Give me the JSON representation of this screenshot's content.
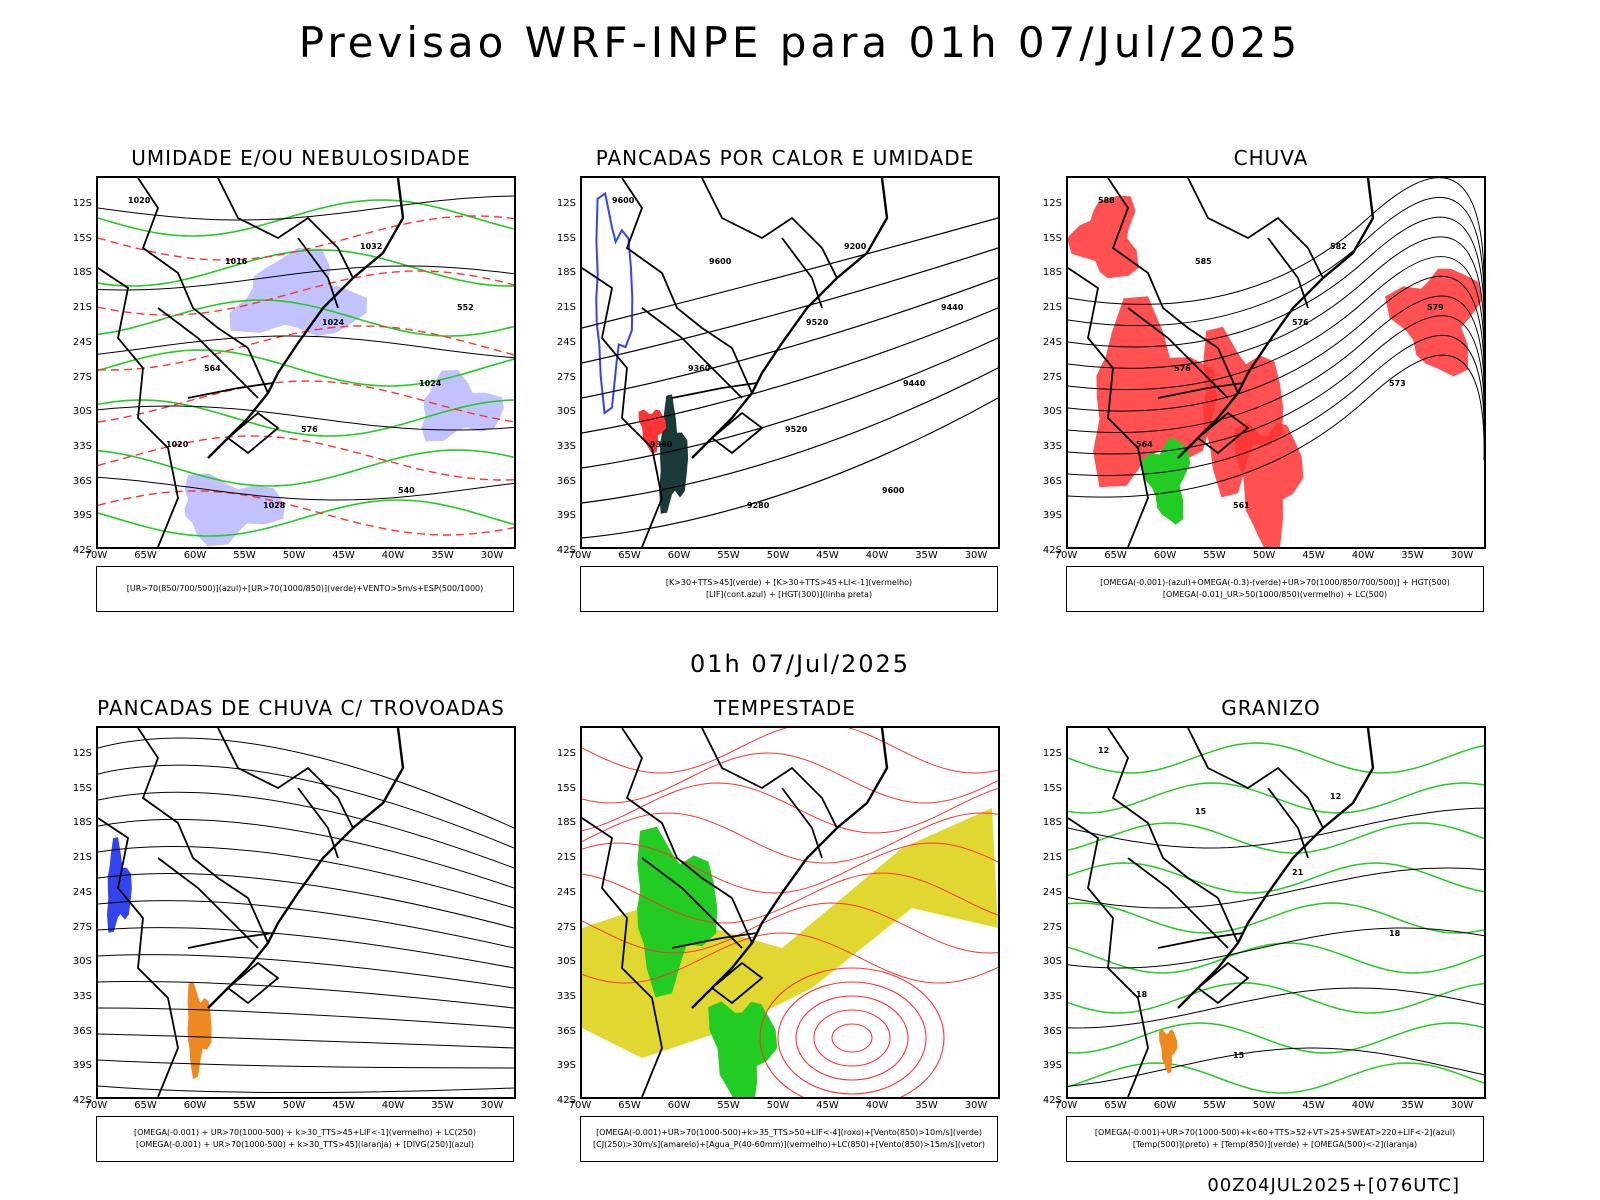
{
  "header": {
    "title": "Previsao WRF-INPE  para 01h 07/Jul/2025",
    "mid_date": "01h 07/Jul/2025",
    "footer": "00Z04JUL2025+[076UTC]"
  },
  "axes": {
    "lat_labels": [
      "12S",
      "15S",
      "18S",
      "21S",
      "24S",
      "27S",
      "30S",
      "33S",
      "36S",
      "39S",
      "42S"
    ],
    "lon_labels": [
      "70W",
      "65W",
      "60W",
      "55W",
      "50W",
      "45W",
      "40W",
      "35W",
      "30W"
    ]
  },
  "colors": {
    "red": "#ff3333",
    "green": "#22cc22",
    "blue": "#3344ee",
    "lavender": "#a8a8ff",
    "yellow": "#e0d830",
    "orange": "#ee8820",
    "dark": "#1a3a3a",
    "black": "#000000"
  },
  "panels": [
    {
      "title": "UMIDADE E/OU NEBULOSIDADE",
      "legend": [
        "[UR>70(850/700/500)](azul)+[UR>70(1000/850)](verde)+VENTO>5m/s+ESP(500/1000)"
      ],
      "contour_labels": [
        "1020",
        "1016",
        "1024",
        "1024",
        "1020",
        "1028",
        "1032",
        "552",
        "564",
        "576",
        "540"
      ]
    },
    {
      "title": "PANCADAS POR CALOR E UMIDADE",
      "legend": [
        "[K>30+TTS>45](verde) + [K>30+TTS>45+LI<-1](vermelho)",
        "[LIF](cont.azul) + [HGT(300)](linha preta)"
      ],
      "contour_labels": [
        "9600",
        "9600",
        "9520",
        "9440",
        "9360",
        "9280",
        "9200",
        "9440",
        "9360",
        "9520",
        "9600"
      ]
    },
    {
      "title": "CHUVA",
      "legend": [
        "[OMEGA(-0.001)-(azul)+OMEGA(-0.3)-(verde)+UR>70(1000/850/700/500)] + HGT(500)",
        "[OMEGA(-0.01)_UR>50(1000/850)(vermelho) + LC(500)"
      ],
      "contour_labels": [
        "588",
        "585",
        "576",
        "573",
        "564",
        "561",
        "582",
        "579",
        "576"
      ]
    },
    {
      "title": "PANCADAS DE CHUVA C/ TROVOADAS",
      "legend": [
        "[OMEGA(-0.001) + UR>70(1000-500) + k>30_TTS>45+LIF<-1](vermelho) + LC(250)",
        "[OMEGA(-0.001) + UR>70(1000-500) + k>30_TTS>45](laranja) + [DIVG(250)](azul)"
      ],
      "contour_labels": []
    },
    {
      "title": "TEMPESTADE",
      "legend": [
        "[OMEGA(-0.001)+UR>70(1000-500)+k>35_TTS>50+LIF<-4](roxo)+[Vento(850)>10m/s](verde)",
        "[CJ(250)>30m/s](amarelo)+[Agua_P(40-60mm)](vermelho)+LC(850)+[Vento(850)>15m/s](vetor)"
      ],
      "contour_labels": []
    },
    {
      "title": "GRANIZO",
      "legend": [
        "[OMEGA(-0.001)+UR>70(1000-500)+k<60+TTS>52+VT>25+SWEAT>220+LIF<-2](azul)",
        "[Temp(500)](preto) + [Temp(850)](verde) + [OMEGA(500)<-2](laranja)"
      ],
      "contour_labels": [
        "12",
        "15",
        "21",
        "18",
        "18",
        "15",
        "12"
      ]
    }
  ]
}
